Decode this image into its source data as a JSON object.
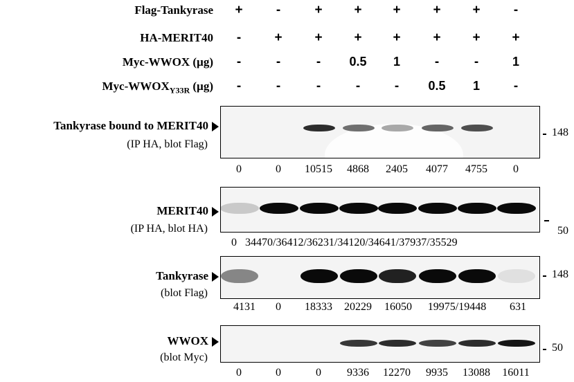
{
  "conditions": {
    "rows": [
      {
        "label": "Flag-Tankyrase",
        "values": [
          "+",
          "-",
          "+",
          "+",
          "+",
          "+",
          "+",
          "-"
        ]
      },
      {
        "label": "HA-MERIT40",
        "values": [
          "-",
          "+",
          "+",
          "+",
          "+",
          "+",
          "+",
          "+"
        ]
      },
      {
        "label": "Myc-WWOX  (µg)",
        "values": [
          "-",
          "-",
          "-",
          "0.5",
          "1",
          "-",
          "-",
          "1"
        ]
      },
      {
        "label_main": "Myc-WWOX",
        "label_sub": "Y33R",
        "label_unit": " (µg)",
        "values": [
          "-",
          "-",
          "-",
          "-",
          "-",
          "0.5",
          "1",
          "-"
        ]
      }
    ]
  },
  "panels": [
    {
      "title": "Tankyrase bound to MERIT40",
      "subtitle": "(IP HA, blot Flag)",
      "mw": "148",
      "quant": [
        "0",
        "0",
        "10515",
        "4868",
        "2405",
        "4077",
        "4755",
        "0"
      ]
    },
    {
      "title": "MERIT40",
      "subtitle": "(IP HA, blot HA)",
      "mw": "50",
      "quant_text": "0   34470/36412/36231/34120/34641/37937/35529"
    },
    {
      "title": "Tankyrase",
      "subtitle": "(blot Flag)",
      "mw": "148",
      "quant": [
        "4131",
        "0",
        "18333",
        "20229",
        "16050",
        "19975/19448",
        "631"
      ]
    },
    {
      "title": "WWOX",
      "subtitle": "(blot Myc)",
      "mw": "50",
      "quant": [
        "0",
        "0",
        "0",
        "9336",
        "12270",
        "9935",
        "13088",
        "16011"
      ]
    }
  ],
  "bands": {
    "panel1": [
      0,
      0,
      0.85,
      0.55,
      0.3,
      0.6,
      0.7,
      0
    ],
    "panel2": [
      0.15,
      1,
      1,
      1,
      1,
      1,
      1,
      1
    ],
    "panel3": [
      0.45,
      0,
      1,
      1,
      0.9,
      1,
      1,
      0.05
    ],
    "panel4": [
      0,
      0,
      0,
      0.8,
      0.85,
      0.75,
      0.85,
      0.95
    ]
  }
}
